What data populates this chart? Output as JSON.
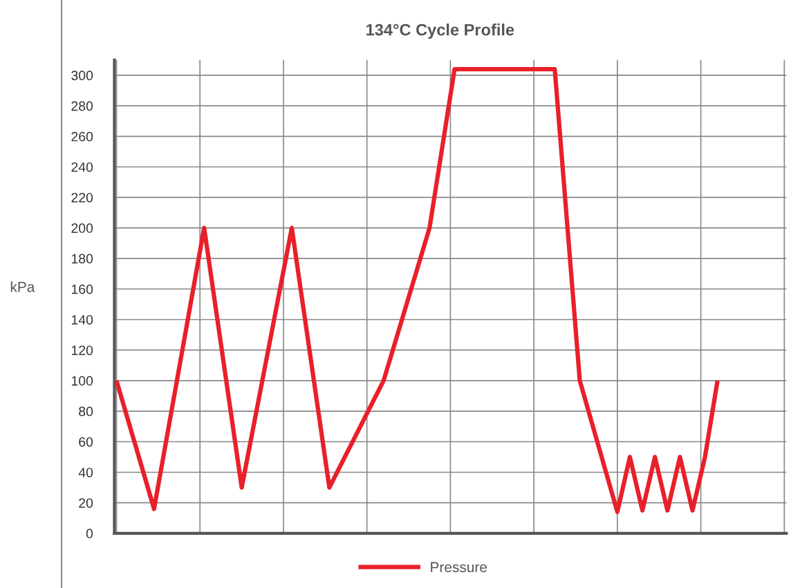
{
  "chart_data": {
    "type": "line",
    "title": "134°C Cycle Profile",
    "ylabel": "kPa",
    "categories": [
      null,
      null,
      null,
      null,
      null,
      null,
      null,
      null,
      null,
      null,
      null,
      null,
      null,
      null,
      null,
      null,
      null,
      null,
      null,
      null,
      null,
      null,
      null,
      null,
      null,
      null,
      null,
      null,
      null,
      null,
      null,
      null,
      null,
      null,
      null,
      null,
      null,
      null,
      null,
      null,
      null,
      null,
      null,
      null,
      null,
      null,
      null,
      null,
      null,
      null,
      null,
      null,
      null,
      null,
      null,
      null,
      null,
      null,
      null,
      null,
      null,
      null,
      null,
      null,
      null,
      null,
      null,
      null,
      null,
      null,
      null,
      null,
      null,
      null,
      null,
      null,
      null,
      null,
      null,
      null,
      null,
      null,
      null,
      null,
      null,
      null,
      null,
      null,
      null,
      null,
      null,
      null,
      null,
      null,
      null,
      null,
      null,
      null,
      null,
      null,
      null,
      null,
      null,
      null,
      null,
      null,
      null,
      null,
      null,
      null,
      null,
      null,
      null,
      null,
      null,
      null,
      null,
      null,
      null,
      null,
      null,
      null,
      null,
      null,
      null,
      null,
      null,
      null,
      null,
      null,
      null,
      null,
      null,
      null,
      null,
      null,
      null,
      null,
      null,
      null,
      null,
      null,
      null,
      null,
      null,
      null,
      null,
      null,
      null,
      null,
      null,
      null,
      null,
      null,
      null,
      null,
      null,
      null,
      null,
      null,
      null
    ],
    "series": [
      {
        "name": "Pressure",
        "color": "#e8202a",
        "values": [
          100,
          null,
          null,
          null,
          null,
          null,
          null,
          null,
          null,
          16,
          null,
          null,
          null,
          null,
          null,
          null,
          null,
          null,
          null,
          null,
          null,
          200,
          null,
          null,
          null,
          null,
          null,
          null,
          null,
          null,
          30,
          null,
          null,
          null,
          null,
          null,
          null,
          null,
          null,
          null,
          null,
          null,
          200,
          null,
          null,
          null,
          null,
          null,
          null,
          null,
          null,
          30,
          null,
          null,
          null,
          null,
          null,
          null,
          null,
          null,
          null,
          null,
          null,
          null,
          100,
          null,
          null,
          null,
          null,
          null,
          null,
          null,
          null,
          null,
          null,
          200,
          null,
          null,
          null,
          null,
          null,
          304,
          null,
          null,
          null,
          null,
          null,
          null,
          null,
          null,
          null,
          null,
          null,
          null,
          null,
          null,
          null,
          null,
          null,
          null,
          null,
          null,
          null,
          null,
          null,
          304,
          null,
          null,
          null,
          null,
          null,
          100,
          null,
          null,
          null,
          null,
          null,
          null,
          null,
          null,
          14,
          null,
          null,
          50,
          null,
          null,
          15,
          null,
          null,
          50,
          null,
          null,
          15,
          null,
          null,
          50,
          null,
          null,
          15,
          null,
          null,
          50,
          null,
          null,
          100,
          null,
          null,
          null,
          null,
          null,
          null,
          null,
          null,
          null,
          null,
          null,
          null,
          null,
          null,
          null,
          null
        ]
      }
    ],
    "ylim": [
      0,
      310
    ],
    "yticks": [
      0,
      20,
      40,
      60,
      80,
      100,
      120,
      140,
      160,
      180,
      200,
      220,
      240,
      260,
      280,
      300
    ],
    "tick_labels": "y",
    "grid": true,
    "legend": "bottom",
    "marker": "none",
    "line_style": "solid"
  }
}
